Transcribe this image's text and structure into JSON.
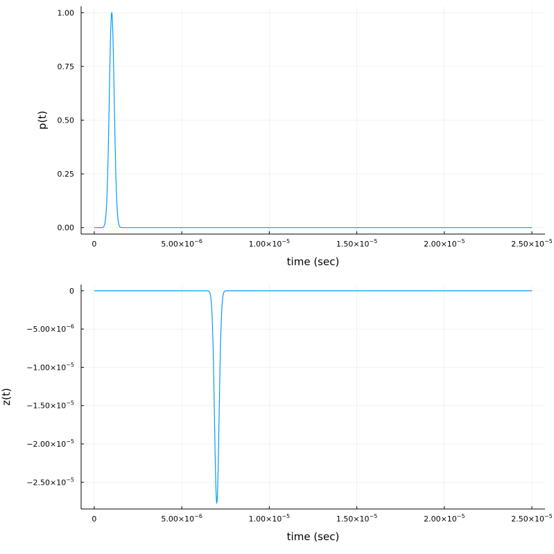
{
  "chart_data": [
    {
      "type": "line",
      "title": "",
      "xlabel": "time (sec)",
      "ylabel": "p(t)",
      "xlim": [
        -7.5e-07,
        2.575e-05
      ],
      "ylim": [
        -0.03,
        1.03
      ],
      "grid": true,
      "legend": "none",
      "color": "#009AFA",
      "x_ticks": [
        {
          "value": 0,
          "label": "0"
        },
        {
          "value": 5e-06,
          "label": "5.00×10",
          "exp": "−6"
        },
        {
          "value": 1e-05,
          "label": "1.00×10",
          "exp": "−5"
        },
        {
          "value": 1.5e-05,
          "label": "1.50×10",
          "exp": "−5"
        },
        {
          "value": 2e-05,
          "label": "2.00×10",
          "exp": "−5"
        },
        {
          "value": 2.5e-05,
          "label": "2.50×10",
          "exp": "−5"
        }
      ],
      "y_ticks": [
        {
          "value": 0,
          "label": "0.00"
        },
        {
          "value": 0.25,
          "label": "0.25"
        },
        {
          "value": 0.5,
          "label": "0.50"
        },
        {
          "value": 0.75,
          "label": "0.75"
        },
        {
          "value": 1,
          "label": "1.00"
        }
      ],
      "pulse": {
        "center": 1e-06,
        "sigma": 1.4e-07,
        "amplitude": 1.0
      },
      "x_range": [
        0,
        2.5e-05
      ]
    },
    {
      "type": "line",
      "title": "",
      "xlabel": "time (sec)",
      "ylabel": "z(t)",
      "xlim": [
        -7.5e-07,
        2.575e-05
      ],
      "ylim": [
        -2.85e-05,
        8e-07
      ],
      "grid": true,
      "legend": "none",
      "color": "#009AFA",
      "x_ticks": [
        {
          "value": 0,
          "label": "0"
        },
        {
          "value": 5e-06,
          "label": "5.00×10",
          "exp": "−6"
        },
        {
          "value": 1e-05,
          "label": "1.00×10",
          "exp": "−5"
        },
        {
          "value": 1.5e-05,
          "label": "1.50×10",
          "exp": "−5"
        },
        {
          "value": 2e-05,
          "label": "2.00×10",
          "exp": "−5"
        },
        {
          "value": 2.5e-05,
          "label": "2.50×10",
          "exp": "−5"
        }
      ],
      "y_ticks": [
        {
          "value": 0,
          "label": "0"
        },
        {
          "value": -5e-06,
          "label": "−5.00×10",
          "exp": "−6"
        },
        {
          "value": -1e-05,
          "label": "−1.00×10",
          "exp": "−5"
        },
        {
          "value": -1.5e-05,
          "label": "−1.50×10",
          "exp": "−5"
        },
        {
          "value": -2e-05,
          "label": "−2.00×10",
          "exp": "−5"
        },
        {
          "value": -2.5e-05,
          "label": "−2.50×10",
          "exp": "−5"
        }
      ],
      "pulse": {
        "center": 7e-06,
        "sigma": 1.3e-07,
        "amplitude": -2.77e-05
      },
      "x_range": [
        0,
        2.5e-05
      ]
    }
  ]
}
